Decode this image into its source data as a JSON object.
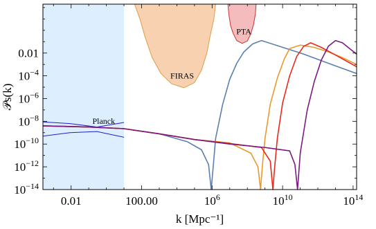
{
  "chart_data": {
    "type": "line",
    "xlabel": "k [Mpc⁻¹]",
    "ylabel": "𝒫s(k)",
    "x_scale": "log",
    "y_scale": "log",
    "xlim_log10": [
      -3.6,
      14.2
    ],
    "ylim_log10": [
      -14,
      2.3
    ],
    "grid": false,
    "legend": "none",
    "x_ticks": [
      {
        "log": -2,
        "label": "0.01"
      },
      {
        "log": 2,
        "label": "100.00"
      },
      {
        "log": 6,
        "base": "10",
        "exp": "6"
      },
      {
        "log": 10,
        "base": "10",
        "exp": "10"
      },
      {
        "log": 14,
        "base": "10",
        "exp": "14"
      }
    ],
    "y_ticks": [
      {
        "log": -2,
        "label": "0.01"
      },
      {
        "log": -4,
        "base": "10",
        "exp": "−4"
      },
      {
        "log": -6,
        "base": "10",
        "exp": "−6"
      },
      {
        "log": -8,
        "base": "10",
        "exp": "−8"
      },
      {
        "log": -10,
        "base": "10",
        "exp": "−10"
      },
      {
        "log": -12,
        "base": "10",
        "exp": "−12"
      },
      {
        "log": -14,
        "base": "10",
        "exp": "−14"
      }
    ],
    "regions": [
      {
        "name": "Planck",
        "label": "Planck",
        "color_fill": "#ddeefe",
        "color_edge": "#1f1fcc",
        "x_log10": [
          -3.6,
          1.0
        ],
        "upper_log10": [
          -8.05,
          -8.2,
          -8.5,
          -8.1
        ],
        "lower_log10": [
          -9.3,
          -9.0,
          -8.9,
          -9.4
        ]
      },
      {
        "name": "FIRAS",
        "label": "FIRAS",
        "color_fill": "#f8d2b0",
        "color_edge": "#e39a48"
      },
      {
        "name": "PTA",
        "label": "PTA",
        "color_fill": "#f4bcbc",
        "color_edge": "#cc3333"
      }
    ],
    "series": [
      {
        "color": "#5b7fae",
        "x_log10": [
          -3.6,
          -1,
          1,
          3,
          4.6,
          5.4,
          5.8,
          5.95,
          6.05,
          6.2,
          6.6,
          7.0,
          7.4,
          7.8,
          8.3,
          8.8,
          9.8,
          11.2,
          12.6,
          14.2
        ],
        "y_log10": [
          -8.4,
          -8.5,
          -8.65,
          -9.1,
          -9.8,
          -10.5,
          -11.8,
          -14,
          -12.2,
          -9.5,
          -6.5,
          -4.3,
          -2.9,
          -1.9,
          -1.2,
          -0.9,
          -1.4,
          -2.1,
          -2.9,
          -3.8
        ]
      },
      {
        "color": "#e69b2c",
        "x_log10": [
          -3.6,
          -1,
          1,
          3,
          5,
          7,
          8.2,
          8.6,
          8.75,
          8.85,
          9.0,
          9.3,
          9.7,
          10.1,
          10.4,
          11.0,
          11.8,
          12.6,
          13.4,
          14.2
        ],
        "y_log10": [
          -8.4,
          -8.5,
          -8.65,
          -9.1,
          -9.6,
          -9.9,
          -10.8,
          -12.0,
          -14,
          -12.0,
          -9.5,
          -6.5,
          -4.2,
          -2.5,
          -1.6,
          -1.3,
          -1.5,
          -1.9,
          -2.4,
          -3.0
        ]
      },
      {
        "color": "#e8281c",
        "x_log10": [
          -3.6,
          -1,
          1,
          3,
          5,
          7,
          8.8,
          9.3,
          9.45,
          9.55,
          9.7,
          10.0,
          10.4,
          10.8,
          11.2,
          11.6,
          12.2,
          12.8,
          13.5,
          14.2
        ],
        "y_log10": [
          -8.4,
          -8.5,
          -8.65,
          -9.1,
          -9.6,
          -9.95,
          -10.3,
          -11.5,
          -14,
          -12.0,
          -9.5,
          -6.4,
          -4.0,
          -2.3,
          -1.4,
          -1.1,
          -1.5,
          -2.0,
          -2.6,
          -3.2
        ]
      },
      {
        "color": "#7a1a7f",
        "x_log10": [
          -3.6,
          -1,
          1,
          3,
          5,
          7,
          9,
          10.4,
          10.7,
          10.85,
          11.0,
          11.4,
          11.8,
          12.2,
          12.6,
          13.0,
          13.4,
          13.8,
          14.2
        ],
        "y_log10": [
          -8.4,
          -8.5,
          -8.65,
          -9.1,
          -9.6,
          -10.0,
          -10.3,
          -10.6,
          -11.8,
          -14,
          -10.8,
          -7.0,
          -4.5,
          -2.6,
          -1.4,
          -0.9,
          -1.1,
          -1.6,
          -2.1
        ]
      }
    ]
  }
}
